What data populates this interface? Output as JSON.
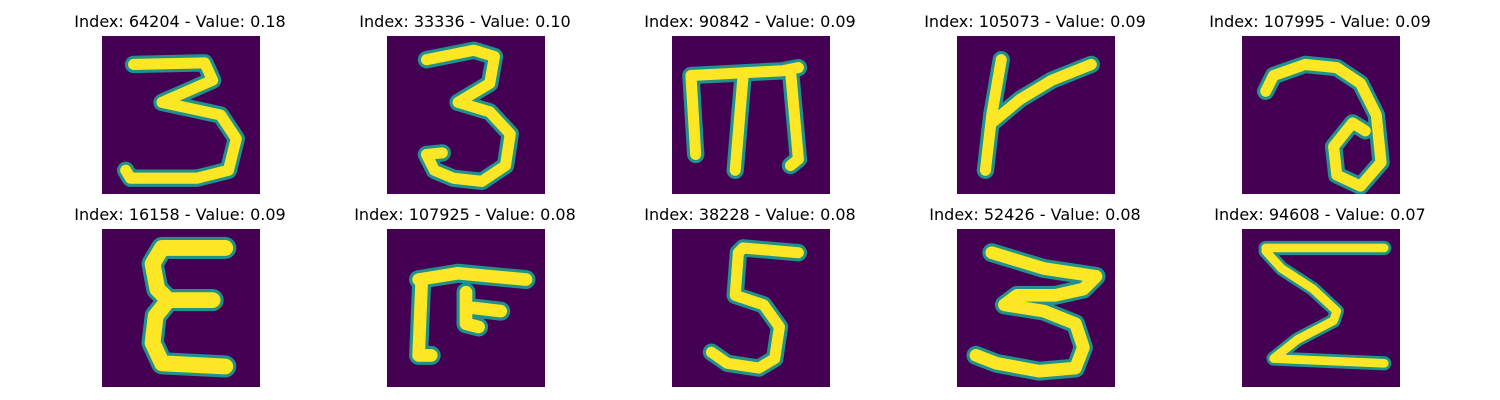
{
  "colors": {
    "background": "#ffffff",
    "image_low": "#440154",
    "image_mid": "#21918c",
    "image_high": "#fde725"
  },
  "panels": [
    {
      "title": "Index: 64204 - Value: 0.18",
      "glyph": "digit-three"
    },
    {
      "title": "Index: 33336 - Value: 0.10",
      "glyph": "digit-three"
    },
    {
      "title": "Index: 90842 - Value: 0.09",
      "glyph": "m-shape"
    },
    {
      "title": "Index: 105073 - Value: 0.09",
      "glyph": "k-shape"
    },
    {
      "title": "Index: 107995 - Value: 0.09",
      "glyph": "a-shape"
    },
    {
      "title": "Index: 16158 - Value: 0.09",
      "glyph": "epsilon-shape"
    },
    {
      "title": "Index: 107925 - Value: 0.08",
      "glyph": "f-shape"
    },
    {
      "title": "Index: 38228 - Value: 0.08",
      "glyph": "digit-five"
    },
    {
      "title": "Index: 52426 - Value: 0.08",
      "glyph": "digit-three"
    },
    {
      "title": "Index: 94608 - Value: 0.07",
      "glyph": "sigma-shape"
    }
  ]
}
